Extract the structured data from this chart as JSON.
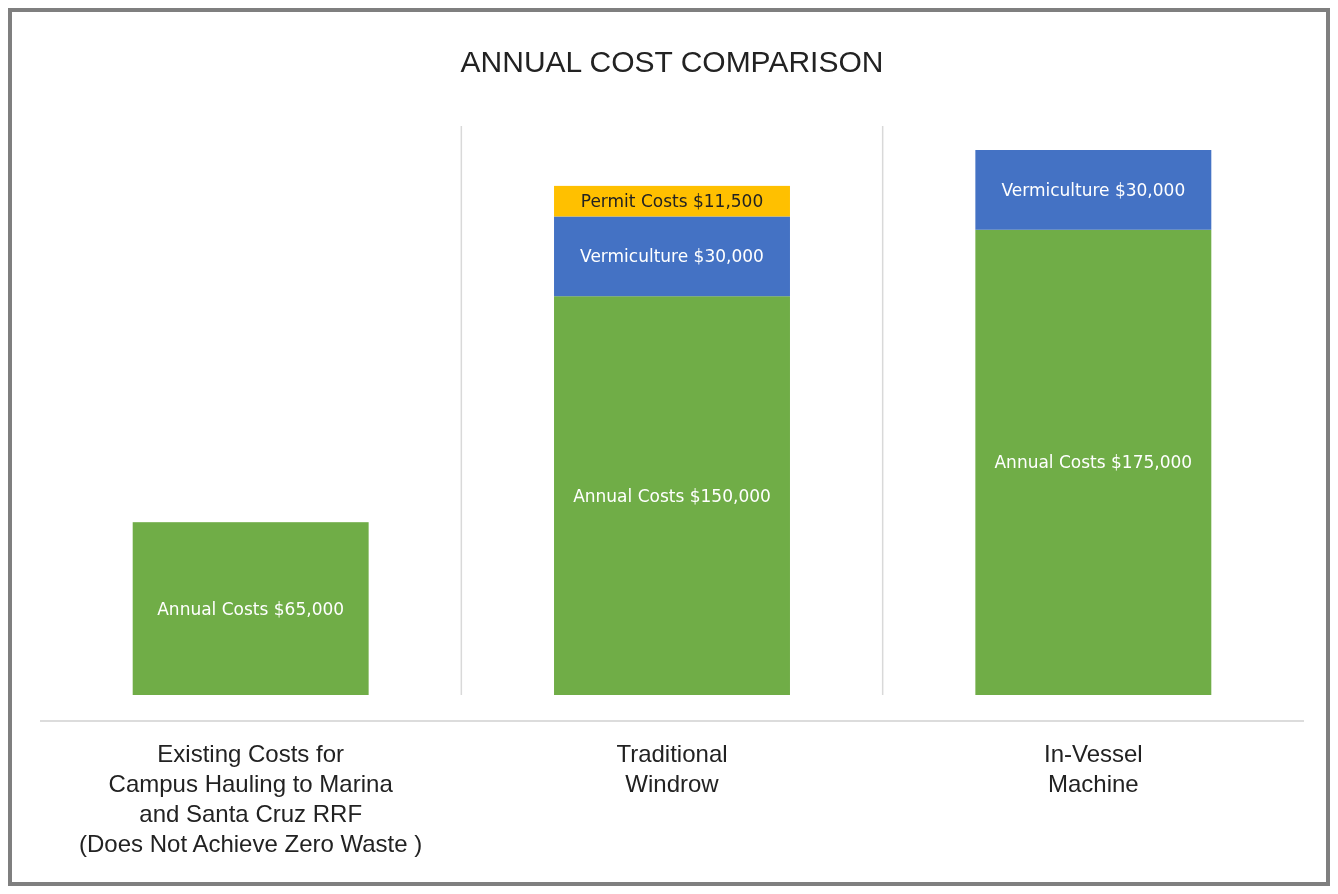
{
  "chart_data": {
    "type": "bar",
    "stacked": true,
    "title": "ANNUAL COST COMPARISON",
    "categories": [
      "Existing Costs for\nCampus Hauling to Marina\nand Santa Cruz RRF\n(Does Not Achieve Zero Waste )",
      "Traditional\nWindrow",
      "In-Vessel\nMachine"
    ],
    "series": [
      {
        "color": "#70ad47",
        "values": [
          65000,
          150000,
          175000
        ],
        "value_labels": [
          "Annual Costs $65,000",
          "Annual Costs $150,000",
          "Annual Costs $175,000"
        ]
      },
      {
        "color": "#4472c4",
        "values": [
          null,
          30000,
          30000
        ],
        "value_labels": [
          null,
          "Vermiculture $30,000",
          "Vermiculture $30,000"
        ]
      },
      {
        "color": "#ffc000",
        "values": [
          null,
          11500,
          null
        ],
        "value_labels": [
          null,
          "Permit Costs $11,500",
          null
        ]
      }
    ],
    "grid": "x"
  }
}
